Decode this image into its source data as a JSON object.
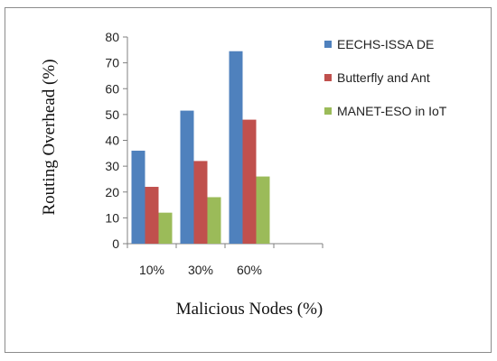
{
  "chart_data": {
    "type": "bar",
    "categories": [
      "10%",
      "30%",
      "60%"
    ],
    "series": [
      {
        "name": "EECHS-ISSA DE",
        "values": [
          36,
          51.5,
          74.5
        ],
        "color": "#4f81bd"
      },
      {
        "name": "Butterfly and Ant",
        "values": [
          22,
          32,
          48
        ],
        "color": "#c0504d"
      },
      {
        "name": "MANET-ESO in IoT",
        "values": [
          12,
          18,
          26
        ],
        "color": "#9bbb59"
      }
    ],
    "title": "",
    "xlabel": "Malicious Nodes (%)",
    "ylabel": "Routing Overhead (%)",
    "ylim": [
      0,
      80
    ],
    "yticks": [
      0,
      10,
      20,
      30,
      40,
      50,
      60,
      70,
      80
    ],
    "grid": false,
    "legend_position": "right"
  }
}
